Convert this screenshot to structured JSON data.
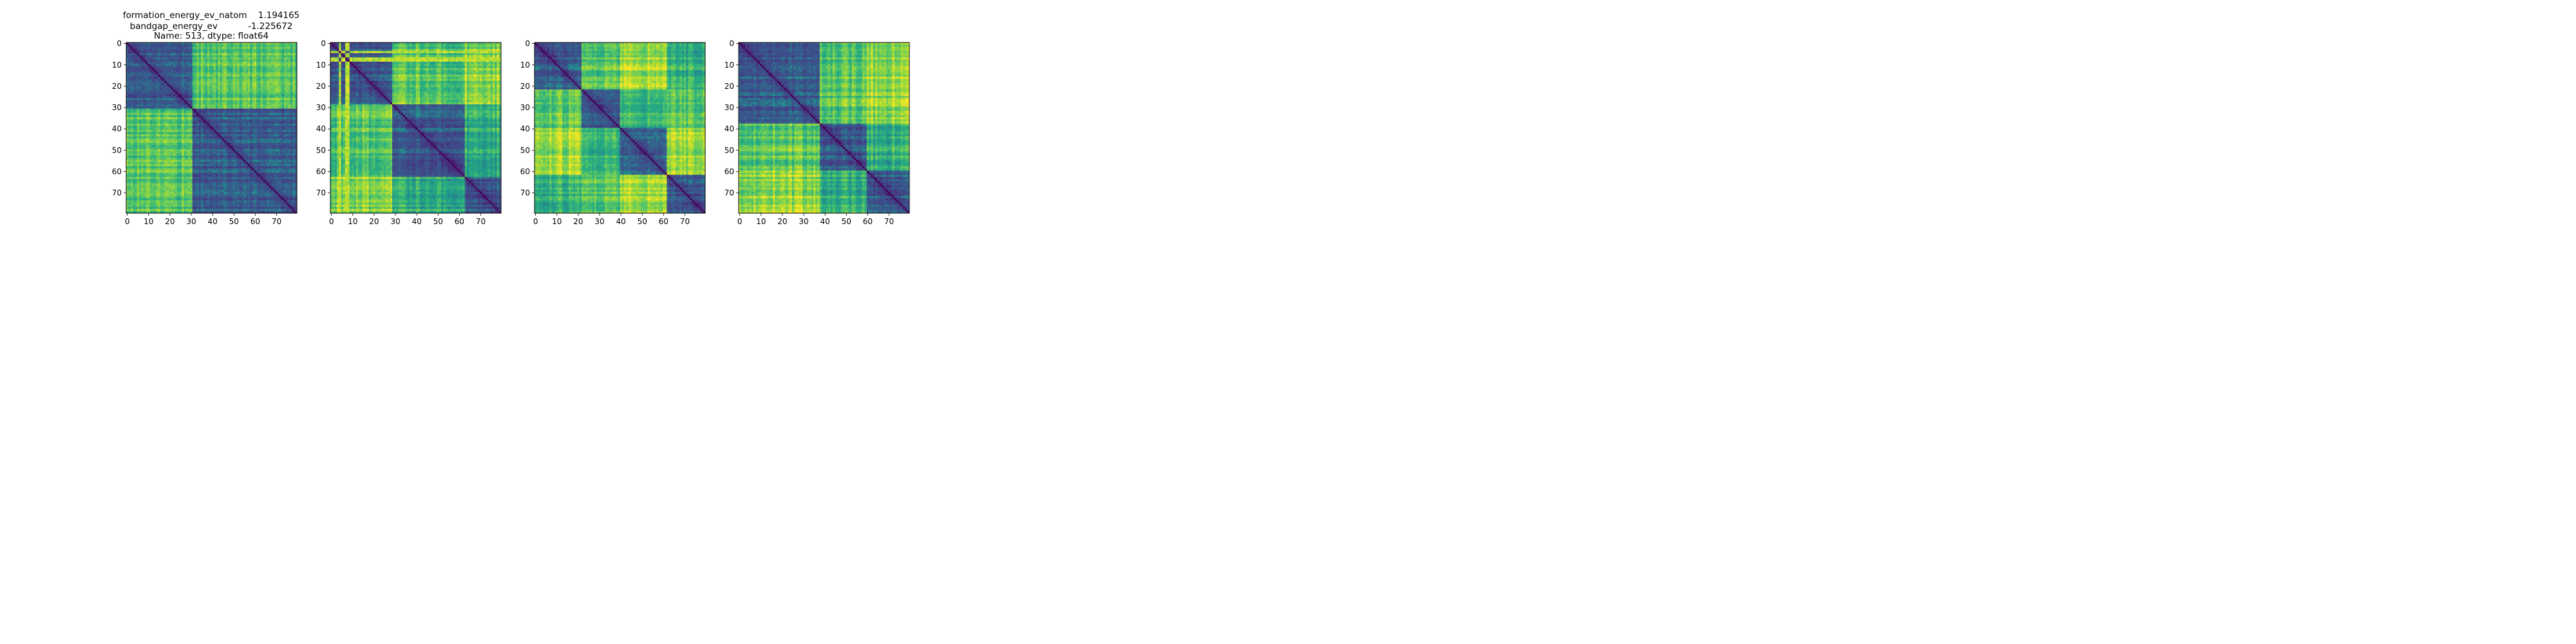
{
  "figure": {
    "title_lines": [
      "formation_energy_ev_natom    1.194165",
      "bandgap_energy_ev           -1.225672",
      "Name: 513, dtype: float64"
    ]
  },
  "chart_data": [
    {
      "type": "heatmap",
      "colormap": "viridis",
      "n": 80,
      "blocks": [
        0,
        31,
        80
      ],
      "xticks": [
        0,
        10,
        20,
        30,
        40,
        50,
        60,
        70
      ],
      "yticks": [
        0,
        10,
        20,
        30,
        40,
        50,
        60,
        70
      ],
      "xlim": [
        0,
        79
      ],
      "ylim": [
        79,
        0
      ],
      "title": "formation_energy_ev_natom    1.194165\nbandgap_energy_ev           -1.225672\nName: 513, dtype: float64"
    },
    {
      "type": "heatmap",
      "colormap": "viridis",
      "n": 80,
      "blocks": [
        0,
        29,
        63,
        80
      ],
      "bright_stripes": [
        4,
        7,
        8
      ],
      "xticks": [
        0,
        10,
        20,
        30,
        40,
        50,
        60,
        70
      ],
      "yticks": [
        0,
        10,
        20,
        30,
        40,
        50,
        60,
        70
      ],
      "xlim": [
        0,
        79
      ],
      "ylim": [
        79,
        0
      ]
    },
    {
      "type": "heatmap",
      "colormap": "viridis",
      "n": 80,
      "blocks": [
        0,
        22,
        40,
        62,
        80
      ],
      "xticks": [
        0,
        10,
        20,
        30,
        40,
        50,
        60,
        70
      ],
      "yticks": [
        0,
        10,
        20,
        30,
        40,
        50,
        60,
        70
      ],
      "xlim": [
        0,
        79
      ],
      "ylim": [
        79,
        0
      ]
    },
    {
      "type": "heatmap",
      "colormap": "viridis",
      "n": 80,
      "blocks": [
        0,
        38,
        60,
        80
      ],
      "xticks": [
        0,
        10,
        20,
        30,
        40,
        50,
        60,
        70
      ],
      "yticks": [
        0,
        10,
        20,
        30,
        40,
        50,
        60,
        70
      ],
      "xlim": [
        0,
        79
      ],
      "ylim": [
        79,
        0
      ]
    }
  ]
}
